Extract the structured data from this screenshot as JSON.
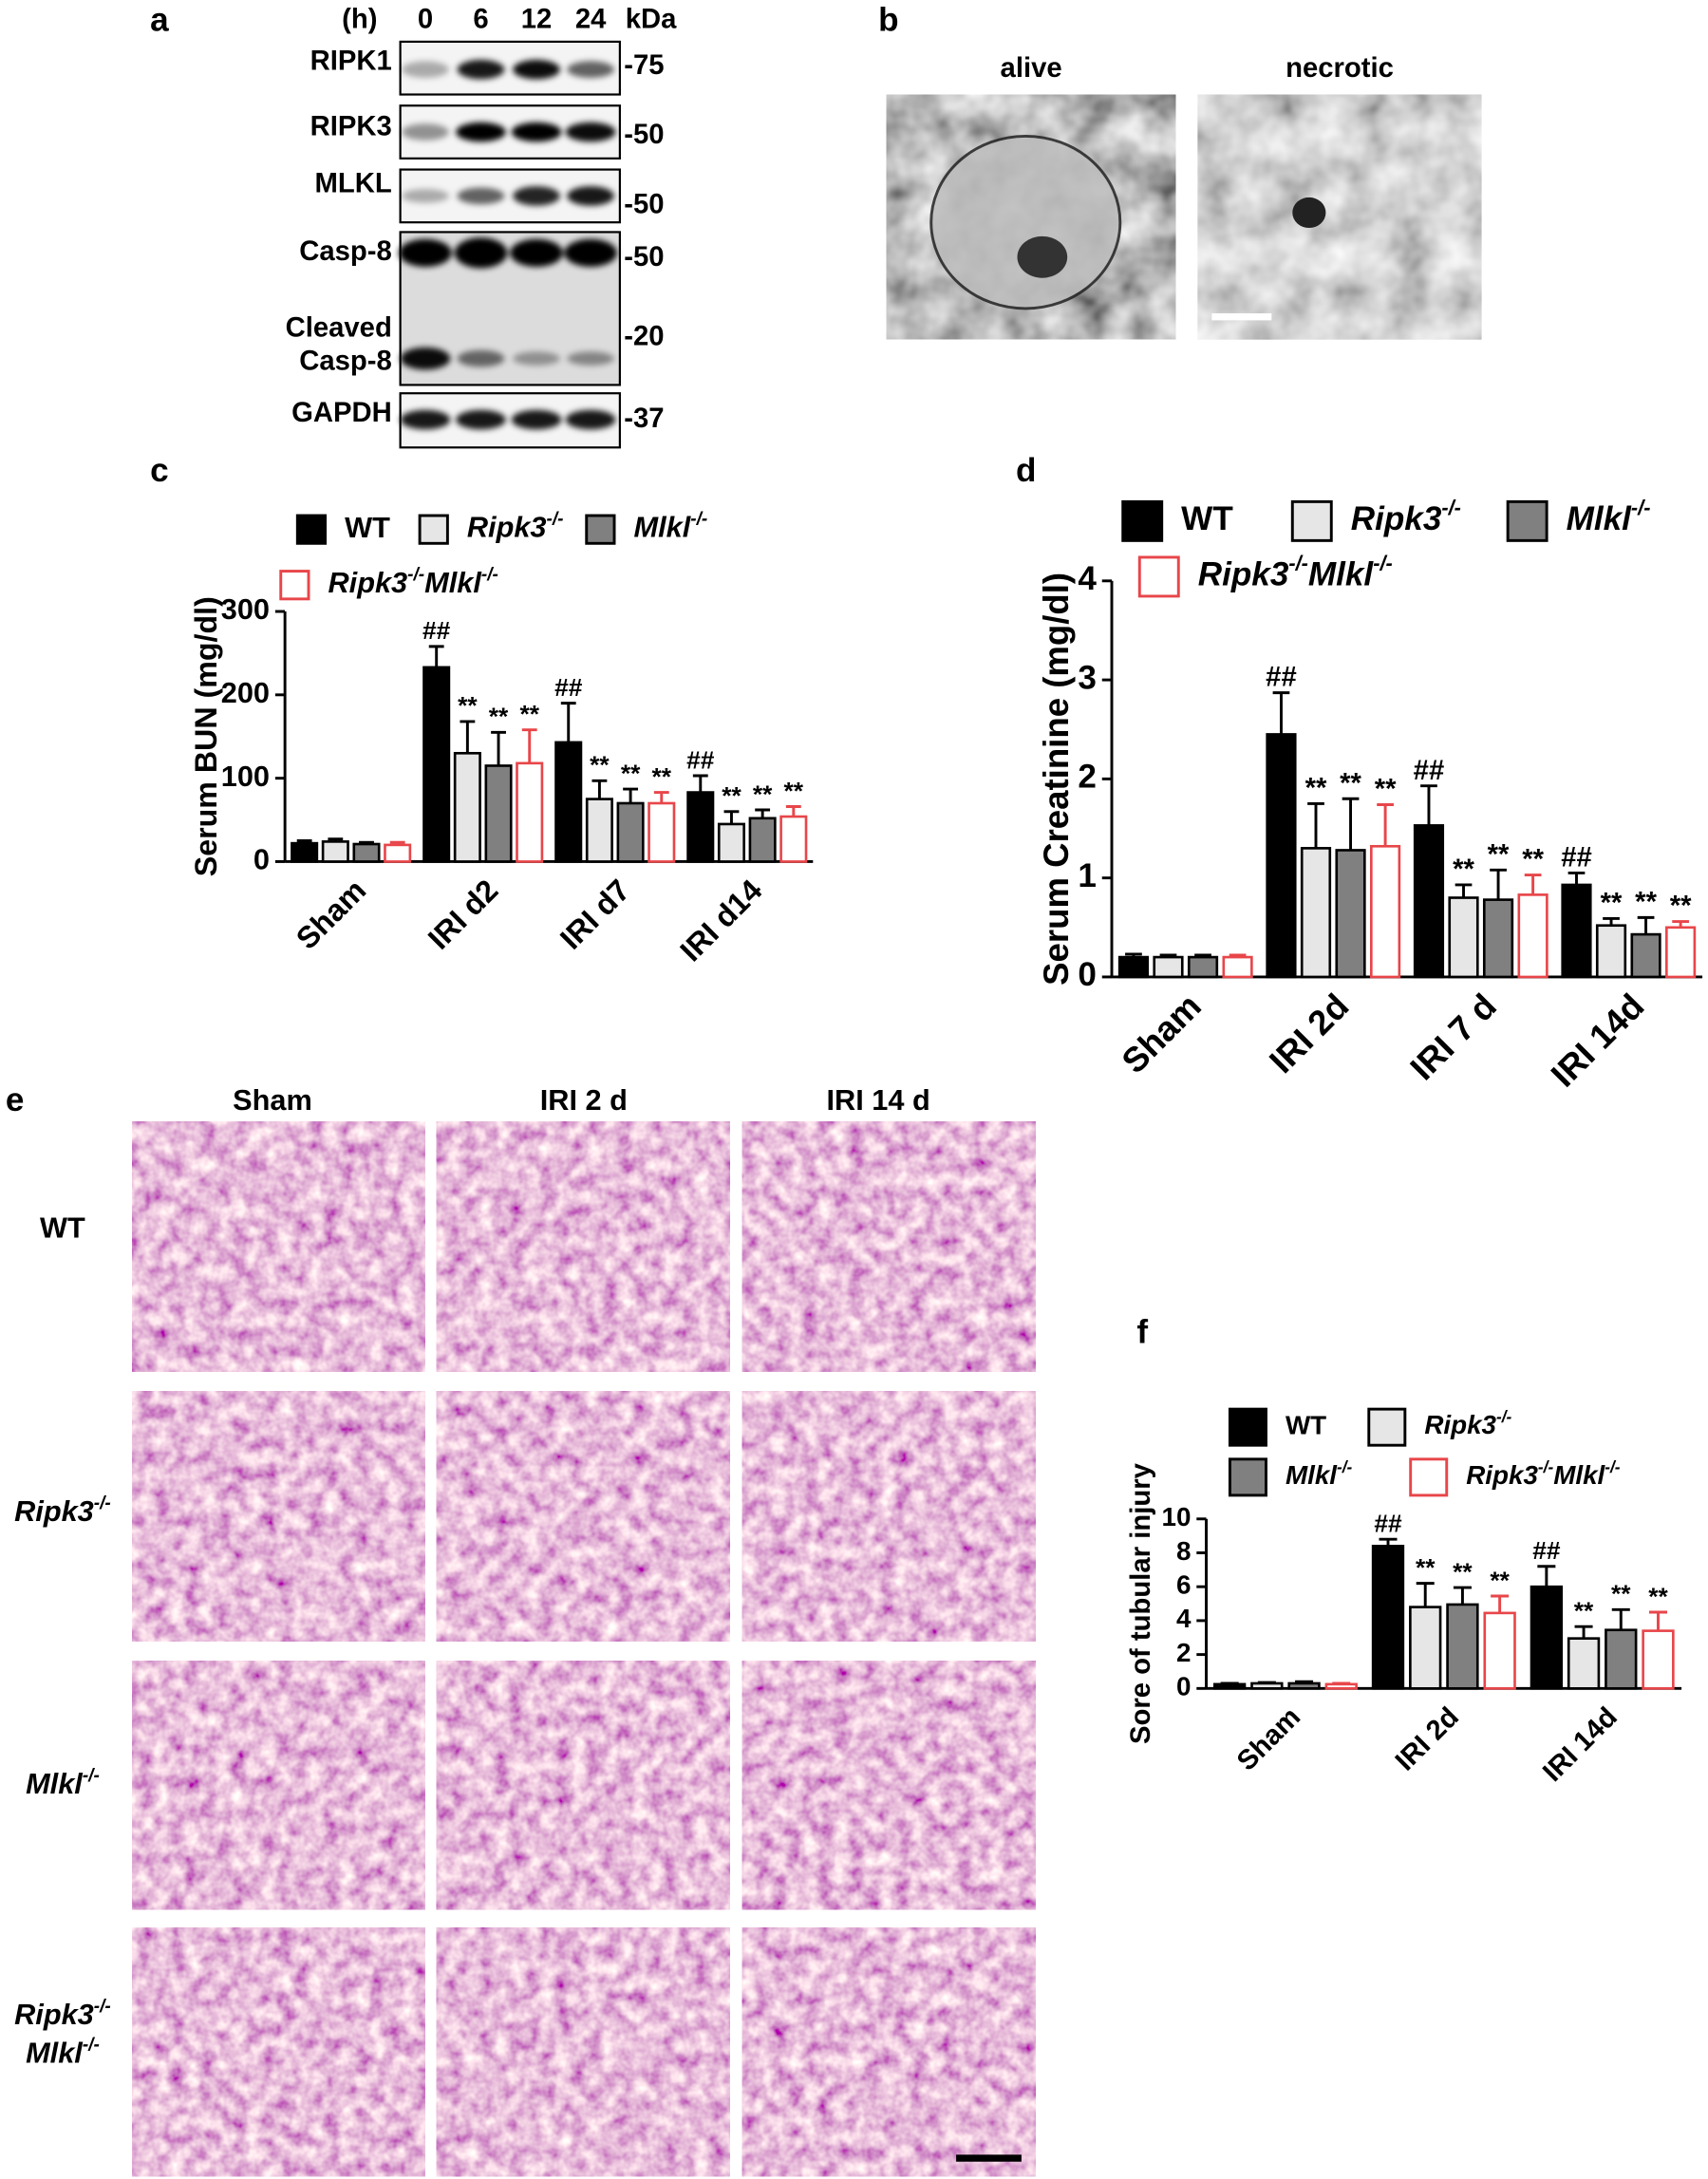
{
  "panel_labels": [
    "a",
    "b",
    "c",
    "d",
    "e",
    "f"
  ],
  "blot": {
    "time_unit": "(h)",
    "timepoints": [
      0,
      6,
      12,
      24
    ],
    "mw_unit": "kDa",
    "rows": [
      {
        "label": "RIPK1",
        "mw": "-75"
      },
      {
        "label": "RIPK3",
        "mw": "-50"
      },
      {
        "label": "MLKL",
        "mw": "-50"
      },
      {
        "label": "Casp-8",
        "mw": "-50"
      },
      {
        "label": [
          "Cleaved",
          "Casp-8"
        ],
        "mw": "-20"
      },
      {
        "label": "GAPDH",
        "mw": "-37"
      }
    ]
  },
  "micrographs": {
    "labels": [
      "alive",
      "necrotic"
    ]
  },
  "histology": {
    "columns": [
      "Sham",
      "IRI 2 d",
      "IRI 14 d"
    ],
    "rows": [
      "WT",
      "Ripk3-/-",
      "Mlkl-/-",
      [
        "Ripk3-/-",
        "Mlkl-/-"
      ]
    ]
  },
  "chart_data": [
    {
      "type": "bar",
      "ylabel": "Serum BUN (mg/dl)",
      "categories": [
        "Sham",
        "IRI d2",
        "IRI d7",
        "IRI d14"
      ],
      "ylim": [
        0,
        300
      ],
      "yticks": [
        0,
        100,
        200,
        300
      ],
      "series": [
        {
          "name": "WT",
          "color": "#000000",
          "edgecolor": "#000000",
          "values": [
            22,
            233,
            143,
            83
          ],
          "errors": [
            3,
            25,
            47,
            20
          ],
          "significance": [
            null,
            "##",
            "##",
            "##"
          ]
        },
        {
          "name": "Ripk3-/-",
          "color": "#e6e6e6",
          "edgecolor": "#000000",
          "values": [
            24,
            130,
            75,
            45
          ],
          "errors": [
            3,
            38,
            22,
            15
          ],
          "significance": [
            null,
            "**",
            "**",
            "**"
          ]
        },
        {
          "name": "Mlkl-/-",
          "color": "#808080",
          "edgecolor": "#000000",
          "values": [
            21,
            115,
            70,
            52
          ],
          "errors": [
            2,
            40,
            17,
            10
          ],
          "significance": [
            null,
            "**",
            "**",
            "**"
          ]
        },
        {
          "name": "Ripk3-/-Mlkl-/-",
          "color": "#ffffff",
          "edgecolor": "#e8464a",
          "values": [
            20,
            118,
            70,
            54
          ],
          "errors": [
            3,
            40,
            13,
            12
          ],
          "significance": [
            null,
            "**",
            "**",
            "**"
          ]
        }
      ]
    },
    {
      "type": "bar",
      "ylabel": "Serum Creatinine (mg/dl)",
      "categories": [
        "Sham",
        "IRI 2d",
        "IRI 7 d",
        "IRI 14d"
      ],
      "ylim": [
        0,
        4
      ],
      "yticks": [
        0,
        1,
        2,
        3,
        4
      ],
      "series": [
        {
          "name": "WT",
          "color": "#000000",
          "edgecolor": "#000000",
          "values": [
            0.2,
            2.45,
            1.53,
            0.93
          ],
          "errors": [
            0.03,
            0.42,
            0.4,
            0.12
          ],
          "significance": [
            null,
            "##",
            "##",
            "##"
          ]
        },
        {
          "name": "Ripk3-/-",
          "color": "#e6e6e6",
          "edgecolor": "#000000",
          "values": [
            0.2,
            1.3,
            0.8,
            0.52
          ],
          "errors": [
            0.02,
            0.45,
            0.13,
            0.07
          ],
          "significance": [
            null,
            "**",
            "**",
            "**"
          ]
        },
        {
          "name": "Mlkl-/-",
          "color": "#808080",
          "edgecolor": "#000000",
          "values": [
            0.2,
            1.28,
            0.78,
            0.43
          ],
          "errors": [
            0.02,
            0.52,
            0.3,
            0.17
          ],
          "significance": [
            null,
            "**",
            "**",
            "**"
          ]
        },
        {
          "name": "Ripk3-/-Mlkl-/-",
          "color": "#ffffff",
          "edgecolor": "#e8464a",
          "values": [
            0.2,
            1.32,
            0.83,
            0.5
          ],
          "errors": [
            0.02,
            0.42,
            0.2,
            0.06
          ],
          "significance": [
            null,
            "**",
            "**",
            "**"
          ]
        }
      ]
    },
    {
      "type": "bar",
      "ylabel": "Sore of tubular injury",
      "categories": [
        "Sham",
        "IRI 2d",
        "IRI 14d"
      ],
      "ylim": [
        0,
        10
      ],
      "yticks": [
        0,
        2,
        4,
        6,
        8,
        10
      ],
      "series": [
        {
          "name": "WT",
          "color": "#000000",
          "edgecolor": "#000000",
          "values": [
            0.25,
            8.4,
            6.0
          ],
          "errors": [
            0.05,
            0.4,
            1.2
          ],
          "significance": [
            null,
            "##",
            "##"
          ]
        },
        {
          "name": "Ripk3-/-",
          "color": "#e6e6e6",
          "edgecolor": "#000000",
          "values": [
            0.3,
            4.8,
            2.95
          ],
          "errors": [
            0.05,
            1.4,
            0.7
          ],
          "significance": [
            null,
            "**",
            "**"
          ]
        },
        {
          "name": "Mlkl-/-",
          "color": "#808080",
          "edgecolor": "#000000",
          "values": [
            0.3,
            4.95,
            3.45
          ],
          "errors": [
            0.1,
            1.0,
            1.2
          ],
          "significance": [
            null,
            "**",
            "**"
          ]
        },
        {
          "name": "Ripk3-/-Mlkl-/-",
          "color": "#ffffff",
          "edgecolor": "#e8464a",
          "values": [
            0.25,
            4.45,
            3.4
          ],
          "errors": [
            0.05,
            1.0,
            1.1
          ],
          "significance": [
            null,
            "**",
            "**"
          ]
        }
      ]
    }
  ]
}
